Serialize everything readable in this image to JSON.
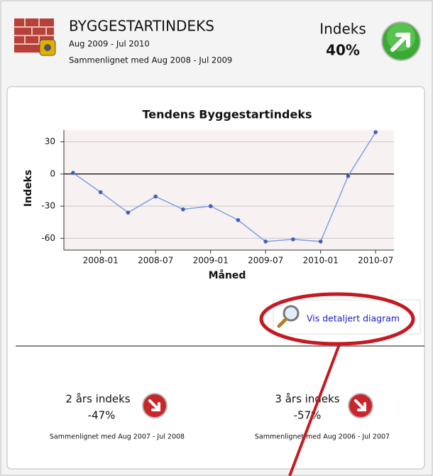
{
  "header": {
    "title": "BYGGESTARTINDEKS",
    "period": "Aug 2009 - Jul 2010",
    "comparison": "Sammenlignet med Aug 2008 - Jul 2009",
    "index_label": "Indeks",
    "index_value": "40%"
  },
  "chart_data": {
    "type": "line",
    "title": "Tendens Byggestartindeks",
    "x_label": "Måned",
    "y_label": "Indeks",
    "x": [
      "2007-10",
      "2008-01",
      "2008-04",
      "2008-07",
      "2008-10",
      "2009-01",
      "2009-04",
      "2009-07",
      "2009-10",
      "2010-01",
      "2010-04",
      "2010-07"
    ],
    "series": [
      {
        "name": "Indeks",
        "color": "#7f9fe6",
        "values": [
          1,
          -17,
          -36,
          -21,
          -33,
          -30,
          -43,
          -63,
          -61,
          -63,
          -2,
          39
        ]
      }
    ],
    "xlim": [
      "2007-09",
      "2010-09"
    ],
    "xticks": [
      "2008-01",
      "2008-07",
      "2009-01",
      "2009-07",
      "2010-01",
      "2010-07"
    ],
    "ylim": [
      -71,
      41
    ],
    "yticks": [
      -60,
      -30,
      0,
      30
    ],
    "grid": true
  },
  "button": {
    "label": "Vis detaljert diagram"
  },
  "indices": [
    {
      "label": "2 års indeks",
      "value": "-47%",
      "comparison": "Sammenlignet med Aug 2007 - Jul 2008"
    },
    {
      "label": "3 års indeks",
      "value": "-57%",
      "comparison": "Sammenlignet med Aug 2006 - Jul 2007"
    }
  ]
}
